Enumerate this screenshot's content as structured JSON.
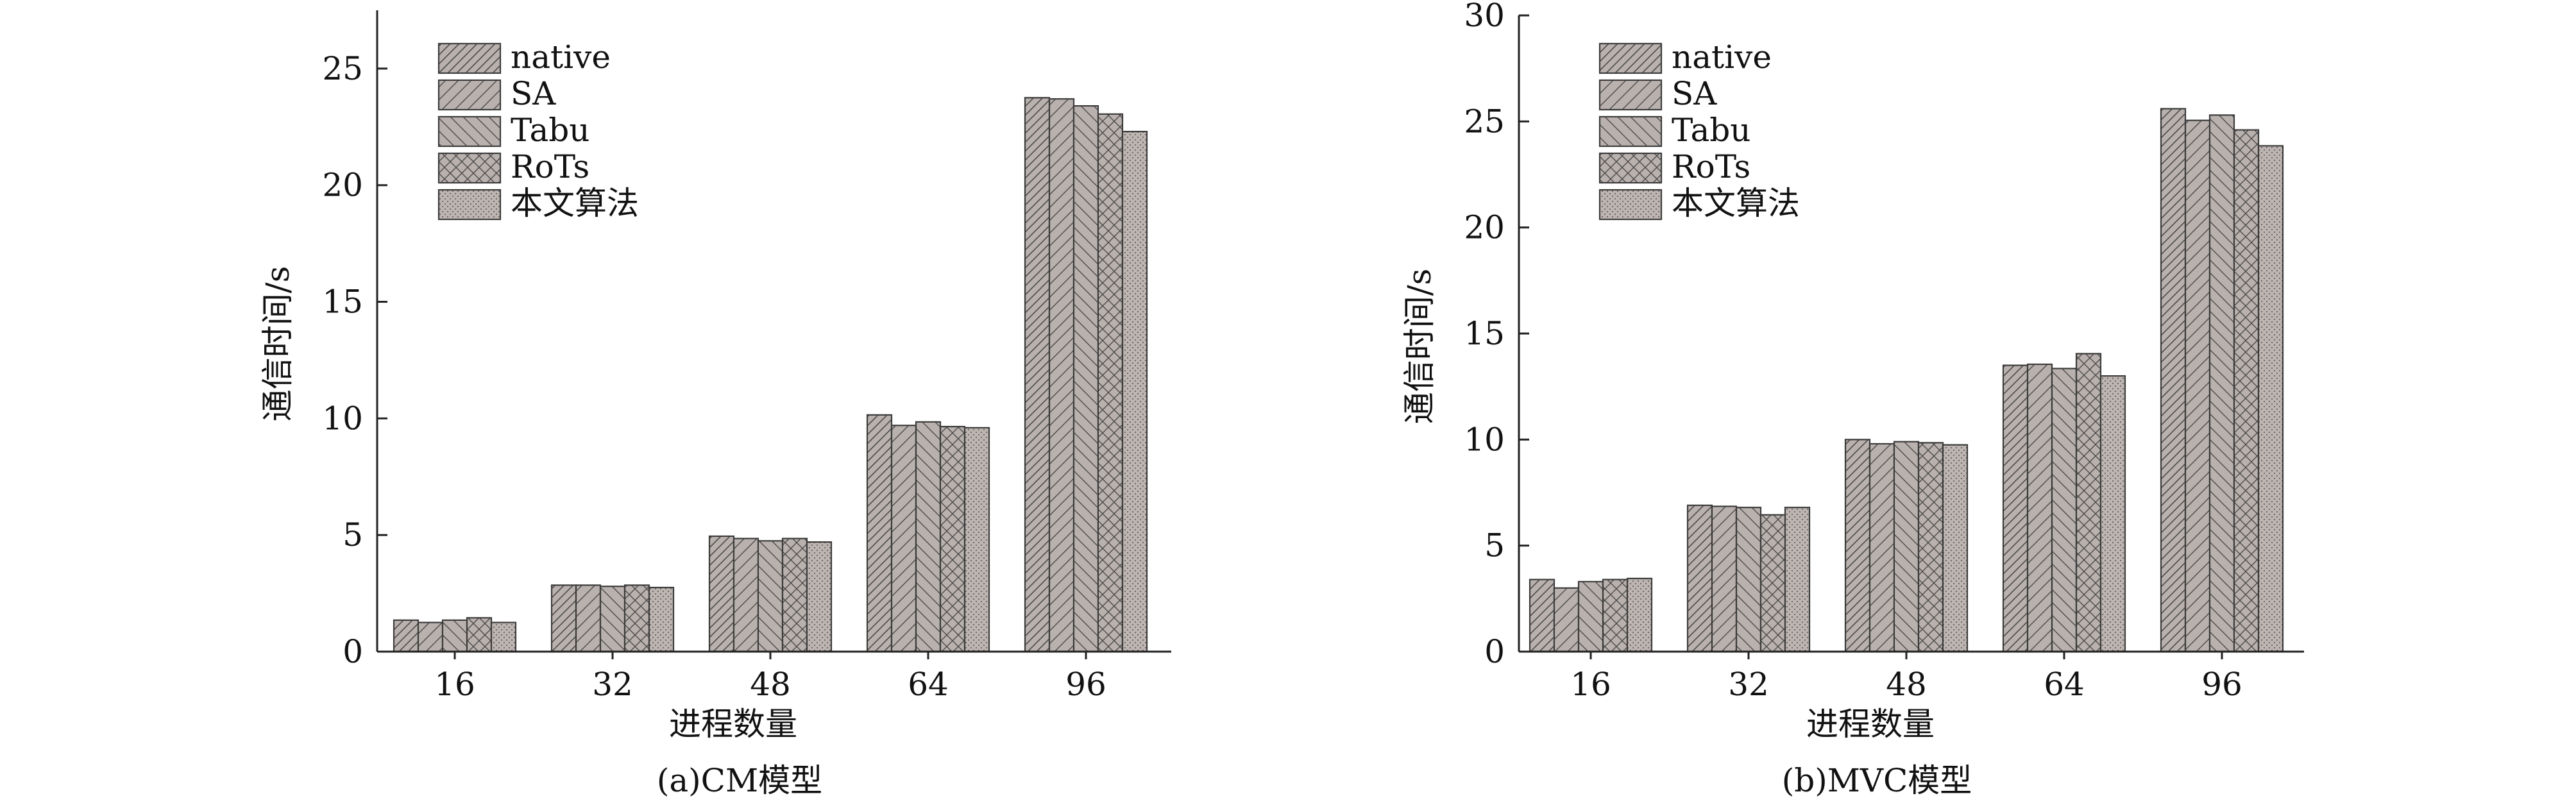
{
  "legend_labels": [
    "native",
    "SA",
    "Tabu",
    "RoTs",
    "本文算法"
  ],
  "colors": {
    "bar_fill": "#b9b1ad",
    "bar_stroke": "#3c3c3c",
    "pattern_line": "#4a4a4a",
    "axis": "#222222"
  },
  "chart_data": [
    {
      "type": "bar",
      "title": "(a)CM模型",
      "xlabel": "进程数量",
      "ylabel": "通信时间/s",
      "categories": [
        "16",
        "32",
        "48",
        "64",
        "96"
      ],
      "ylim": [
        0,
        27.5
      ],
      "yticks": [
        0,
        5,
        10,
        15,
        20,
        25
      ],
      "grid": false,
      "legend_position": "top-left",
      "series": [
        {
          "name": "native",
          "values": [
            1.35,
            2.85,
            4.95,
            10.15,
            23.75
          ]
        },
        {
          "name": "SA",
          "values": [
            1.25,
            2.85,
            4.85,
            9.7,
            23.7
          ]
        },
        {
          "name": "Tabu",
          "values": [
            1.35,
            2.8,
            4.75,
            9.85,
            23.4
          ]
        },
        {
          "name": "RoTs",
          "values": [
            1.45,
            2.85,
            4.85,
            9.65,
            23.05
          ]
        },
        {
          "name": "本文算法",
          "values": [
            1.25,
            2.75,
            4.7,
            9.6,
            22.3
          ]
        }
      ]
    },
    {
      "type": "bar",
      "title": "(b)MVC模型",
      "xlabel": "进程数量",
      "ylabel": "通信时间/s",
      "categories": [
        "16",
        "32",
        "48",
        "64",
        "96"
      ],
      "ylim": [
        0,
        30
      ],
      "yticks": [
        0,
        5,
        10,
        15,
        20,
        25,
        30
      ],
      "grid": false,
      "legend_position": "top-left",
      "series": [
        {
          "name": "native",
          "values": [
            3.4,
            6.9,
            10.0,
            13.5,
            25.6
          ]
        },
        {
          "name": "SA",
          "values": [
            3.0,
            6.85,
            9.8,
            13.55,
            25.05
          ]
        },
        {
          "name": "Tabu",
          "values": [
            3.3,
            6.8,
            9.9,
            13.35,
            25.3
          ]
        },
        {
          "name": "RoTs",
          "values": [
            3.4,
            6.45,
            9.85,
            14.05,
            24.6
          ]
        },
        {
          "name": "本文算法",
          "values": [
            3.45,
            6.8,
            9.75,
            13.0,
            23.85
          ]
        }
      ]
    }
  ]
}
